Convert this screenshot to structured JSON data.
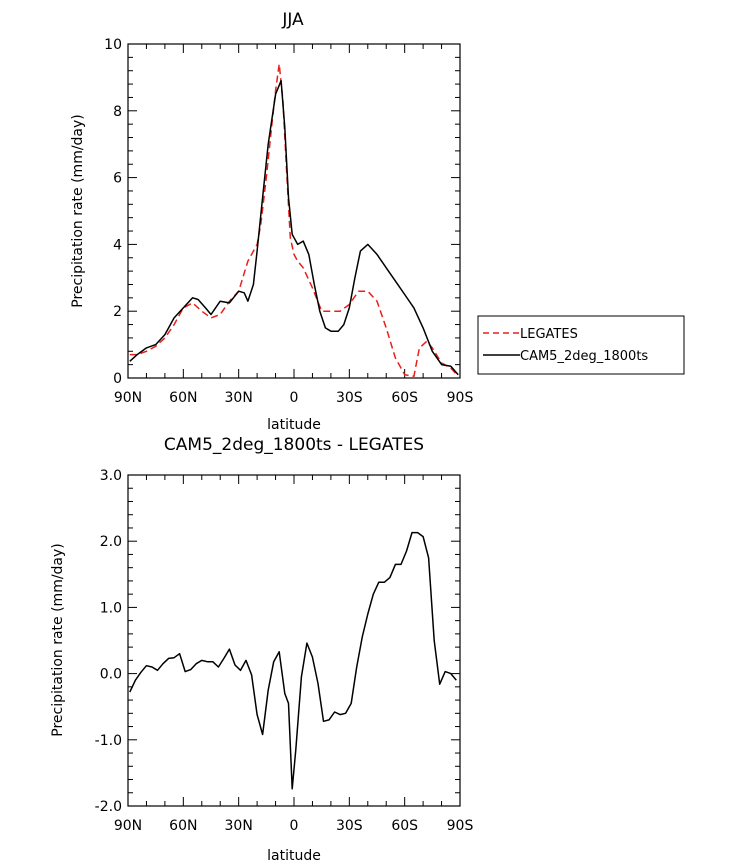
{
  "chart_data": [
    {
      "type": "line",
      "title": "JJA",
      "xlabel": "latitude",
      "ylabel": "Precipitation rate (mm/day)",
      "xlim": [
        -90,
        90
      ],
      "ylim": [
        0,
        10
      ],
      "x_ticks": [
        -90,
        -60,
        -30,
        0,
        30,
        60,
        90
      ],
      "x_tick_labels": [
        "90N",
        "60N",
        "30N",
        "0",
        "30S",
        "60S",
        "90S"
      ],
      "y_ticks": [
        0,
        2,
        4,
        6,
        8,
        10
      ],
      "y_tick_labels": [
        "0",
        "2",
        "4",
        "6",
        "8",
        "10"
      ],
      "legend": {
        "placement": "right",
        "entries": [
          "LEGATES",
          "CAM5_2deg_1800ts"
        ]
      },
      "series": [
        {
          "name": "LEGATES",
          "color": "#e8201c",
          "dash": "dashed",
          "x": [
            -89,
            -85,
            -80,
            -75,
            -70,
            -65,
            -60,
            -55,
            -50,
            -45,
            -40,
            -35,
            -30,
            -25,
            -20,
            -18,
            -15,
            -12,
            -10,
            -8,
            -6,
            -4,
            -2,
            0,
            2,
            5,
            10,
            15,
            20,
            25,
            30,
            35,
            40,
            45,
            50,
            55,
            60,
            65,
            68,
            72,
            75,
            80,
            85,
            89
          ],
          "y": [
            0.7,
            0.7,
            0.8,
            0.95,
            1.2,
            1.6,
            2.1,
            2.25,
            2.0,
            1.8,
            1.9,
            2.3,
            2.6,
            3.5,
            4.0,
            4.6,
            6.0,
            7.6,
            8.6,
            9.4,
            8.3,
            6.2,
            4.2,
            3.7,
            3.5,
            3.3,
            2.7,
            2.0,
            2.0,
            2.0,
            2.2,
            2.6,
            2.6,
            2.3,
            1.5,
            0.6,
            0.1,
            0.05,
            0.9,
            1.1,
            0.9,
            0.45,
            0.3,
            0.05
          ]
        },
        {
          "name": "CAM5_2deg_1800ts",
          "color": "#000000",
          "dash": "solid",
          "x": [
            -89,
            -85,
            -80,
            -75,
            -70,
            -65,
            -60,
            -55,
            -52,
            -48,
            -45,
            -40,
            -35,
            -30,
            -27,
            -25,
            -22,
            -20,
            -17,
            -14,
            -10,
            -7,
            -5,
            -3,
            -1,
            0,
            2,
            5,
            8,
            11,
            14,
            17,
            20,
            24,
            27,
            30,
            33,
            36,
            40,
            45,
            50,
            55,
            60,
            65,
            70,
            75,
            80,
            85,
            89
          ],
          "y": [
            0.5,
            0.7,
            0.9,
            1.0,
            1.3,
            1.8,
            2.1,
            2.4,
            2.35,
            2.1,
            1.9,
            2.3,
            2.25,
            2.6,
            2.55,
            2.3,
            2.8,
            3.8,
            5.4,
            7.0,
            8.5,
            8.9,
            7.5,
            5.4,
            4.3,
            4.2,
            4.0,
            4.1,
            3.7,
            2.8,
            2.0,
            1.5,
            1.4,
            1.4,
            1.6,
            2.1,
            3.0,
            3.8,
            4.0,
            3.7,
            3.3,
            2.9,
            2.5,
            2.1,
            1.5,
            0.8,
            0.4,
            0.35,
            0.1
          ]
        }
      ]
    },
    {
      "type": "line",
      "title": "CAM5_2deg_1800ts - LEGATES",
      "xlabel": "latitude",
      "ylabel": "Precipitation rate (mm/day)",
      "xlim": [
        -90,
        90
      ],
      "ylim": [
        -2,
        3
      ],
      "x_ticks": [
        -90,
        -60,
        -30,
        0,
        30,
        60,
        90
      ],
      "x_tick_labels": [
        "90N",
        "60N",
        "30N",
        "0",
        "30S",
        "60S",
        "90S"
      ],
      "y_ticks": [
        -2,
        -1,
        0,
        1,
        2,
        3
      ],
      "y_tick_labels": [
        "-2.0",
        "-1.0",
        "0.0",
        "1.0",
        "2.0",
        "3.0"
      ],
      "series": [
        {
          "color": "#000000",
          "dash": "solid",
          "x": [
            -89,
            -86,
            -83,
            -80,
            -77,
            -74,
            -71,
            -68,
            -65,
            -62,
            -59,
            -56,
            -53,
            -50,
            -47,
            -44,
            -41,
            -38,
            -35,
            -32,
            -29,
            -26,
            -23,
            -20,
            -17,
            -14,
            -11,
            -8,
            -5,
            -3,
            -1,
            1,
            4,
            7,
            10,
            13,
            16,
            19,
            22,
            25,
            28,
            31,
            34,
            37,
            40,
            43,
            46,
            49,
            52,
            55,
            58,
            61,
            64,
            67,
            70,
            73,
            76,
            79,
            82,
            85,
            88
          ],
          "y": [
            -0.28,
            -0.1,
            0.02,
            0.12,
            0.1,
            0.05,
            0.15,
            0.23,
            0.24,
            0.3,
            0.03,
            0.06,
            0.15,
            0.2,
            0.18,
            0.18,
            0.1,
            0.23,
            0.37,
            0.13,
            0.05,
            0.2,
            -0.02,
            -0.62,
            -0.92,
            -0.25,
            0.18,
            0.33,
            -0.3,
            -0.45,
            -1.74,
            -1.15,
            -0.05,
            0.46,
            0.25,
            -0.15,
            -0.72,
            -0.7,
            -0.58,
            -0.62,
            -0.6,
            -0.45,
            0.1,
            0.55,
            0.9,
            1.2,
            1.38,
            1.38,
            1.45,
            1.65,
            1.65,
            1.85,
            2.13,
            2.13,
            2.07,
            1.75,
            0.5,
            -0.16,
            0.03,
            0.0,
            -0.1
          ]
        }
      ]
    }
  ]
}
